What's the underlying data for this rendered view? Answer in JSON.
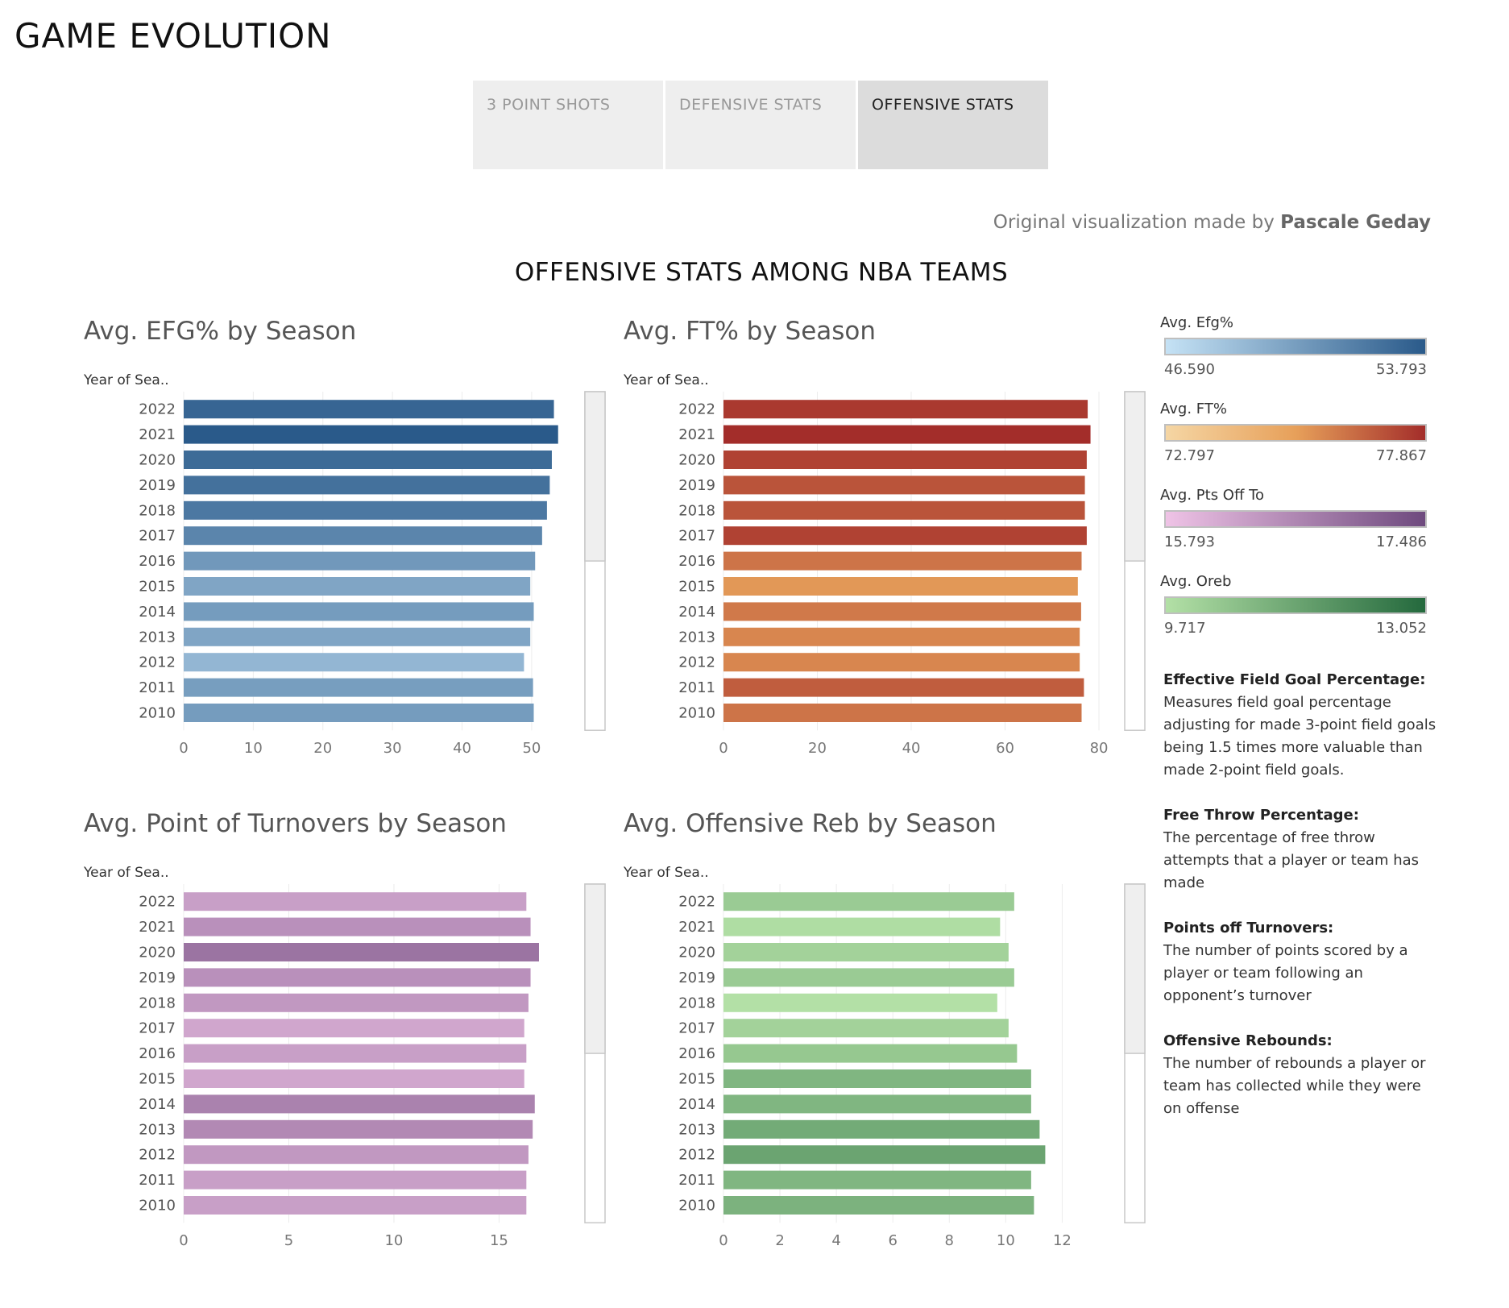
{
  "page_title": "GAME EVOLUTION",
  "tabs": [
    {
      "label": "3 POINT SHOTS",
      "active": false
    },
    {
      "label": "DEFENSIVE STATS",
      "active": false
    },
    {
      "label": "OFFENSIVE STATS",
      "active": true
    }
  ],
  "credit": {
    "prefix": "Original visualization made by ",
    "author": "Pascale Geday"
  },
  "dashboard_title": "OFFENSIVE STATS AMONG NBA TEAMS",
  "chart_data": [
    {
      "type": "bar",
      "title": "Avg. EFG% by Season",
      "category_header": "Year of Sea..",
      "xlabel": "Avg. Efg%",
      "categories": [
        "2022",
        "2021",
        "2020",
        "2019",
        "2018",
        "2017",
        "2016",
        "2015",
        "2014",
        "2013",
        "2012",
        "2011",
        "2010"
      ],
      "values": [
        53.2,
        53.8,
        52.9,
        52.6,
        52.2,
        51.5,
        50.5,
        49.8,
        50.3,
        49.8,
        48.9,
        50.2,
        50.3
      ],
      "xlim": [
        0,
        58
      ],
      "xticks": [
        0,
        10,
        20,
        30,
        40,
        50
      ],
      "color_min": 46.59,
      "color_max": 53.793,
      "colors": [
        "#c5e2f5",
        "#2a5a8a"
      ]
    },
    {
      "type": "bar",
      "title": "Avg. FT% by Season",
      "category_header": "Year of Sea..",
      "xlabel": "Avg. FT%",
      "categories": [
        "2022",
        "2021",
        "2020",
        "2019",
        "2018",
        "2017",
        "2016",
        "2015",
        "2014",
        "2013",
        "2012",
        "2011",
        "2010"
      ],
      "values": [
        77.6,
        78.2,
        77.4,
        77.0,
        77.0,
        77.4,
        76.3,
        75.5,
        76.2,
        75.9,
        75.9,
        76.8,
        76.3
      ],
      "xlim": [
        0,
        86
      ],
      "xticks": [
        0,
        20,
        40,
        60,
        80
      ],
      "color_min": 72.797,
      "color_max": 77.867,
      "colors": [
        "#f5d6a4",
        "#e7a05a",
        "#a32d2a"
      ]
    },
    {
      "type": "bar",
      "title": "Avg. Point of Turnovers by Season",
      "category_header": "Year of Sea..",
      "xlabel": "Avg. Pts Off To",
      "categories": [
        "2022",
        "2021",
        "2020",
        "2019",
        "2018",
        "2017",
        "2016",
        "2015",
        "2014",
        "2013",
        "2012",
        "2011",
        "2010"
      ],
      "values": [
        16.3,
        16.5,
        16.9,
        16.5,
        16.4,
        16.2,
        16.3,
        16.2,
        16.7,
        16.6,
        16.4,
        16.3,
        16.3
      ],
      "xlim": [
        0,
        19.2
      ],
      "xticks": [
        0,
        5,
        10,
        15
      ],
      "color_min": 15.793,
      "color_max": 17.486,
      "colors": [
        "#efc3e6",
        "#6e4a7e"
      ]
    },
    {
      "type": "bar",
      "title": "Avg. Offensive Reb by Season",
      "category_header": "Year of Sea..",
      "xlabel": "Avg. Oreb",
      "categories": [
        "2022",
        "2021",
        "2020",
        "2019",
        "2018",
        "2017",
        "2016",
        "2015",
        "2014",
        "2013",
        "2012",
        "2011",
        "2010"
      ],
      "values": [
        10.3,
        9.8,
        10.1,
        10.3,
        9.7,
        10.1,
        10.4,
        10.9,
        10.9,
        11.2,
        11.4,
        10.9,
        11.0
      ],
      "xlim": [
        0,
        14.3
      ],
      "xticks": [
        0,
        2,
        4,
        6,
        8,
        10,
        12
      ],
      "color_min": 9.717,
      "color_max": 13.052,
      "colors": [
        "#b3e0a6",
        "#24693d"
      ]
    }
  ],
  "legends": [
    {
      "title": "Avg. Efg%",
      "min": "46.590",
      "max": "53.793",
      "gradient": [
        "#c5e2f5",
        "#2a5a8a"
      ]
    },
    {
      "title": "Avg. FT%",
      "min": "72.797",
      "max": "77.867",
      "gradient": [
        "#f5d6a4",
        "#e7a05a",
        "#a32d2a"
      ]
    },
    {
      "title": "Avg. Pts Off To",
      "min": "15.793",
      "max": "17.486",
      "gradient": [
        "#efc3e6",
        "#6e4a7e"
      ]
    },
    {
      "title": "Avg. Oreb",
      "min": "9.717",
      "max": "13.052",
      "gradient": [
        "#b3e0a6",
        "#24693d"
      ]
    }
  ],
  "definitions": [
    {
      "title": "Effective Field Goal Percentage:",
      "text": "Measures field goal percentage adjusting for made 3-point field goals being 1.5 times more valuable than made 2-point field goals."
    },
    {
      "title": "Free Throw Percentage:",
      "text": "The percentage of free throw attempts that a player or team has made"
    },
    {
      "title": "Points off Turnovers:",
      "text": "The number of points scored by a player or team following an opponent’s turnover"
    },
    {
      "title": "Offensive Rebounds:",
      "text": "The number of rebounds a player or team has collected while they were on offense"
    }
  ]
}
